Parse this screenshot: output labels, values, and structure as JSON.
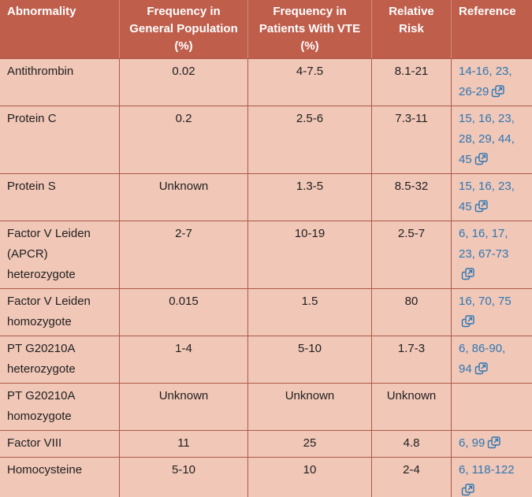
{
  "colors": {
    "header_bg": "#c05e4c",
    "header_text": "#ffffff",
    "header_divider": "#d38a79",
    "row_bg": "#f1c7b7",
    "grid_line": "#ad594a",
    "text": "#1f1f1f",
    "link": "#2d77b4"
  },
  "table": {
    "columns": [
      {
        "id": "abnormality",
        "label": "Abnormality"
      },
      {
        "id": "freq_general",
        "label": "Frequency in General Population (%)"
      },
      {
        "id": "freq_vte",
        "label": "Frequency in Patients With VTE (%)"
      },
      {
        "id": "relative_risk",
        "label": "Relative Risk"
      },
      {
        "id": "reference",
        "label": "Reference"
      }
    ],
    "rows": [
      {
        "abnormality": "Antithrombin",
        "freq_general": "0.02",
        "freq_vte": "4-7.5",
        "relative_risk": "8.1-21",
        "reference": "14-16, 23, 26-29"
      },
      {
        "abnormality": "Protein C",
        "freq_general": "0.2",
        "freq_vte": "2.5-6",
        "relative_risk": "7.3-11",
        "reference": "15, 16, 23, 28, 29, 44, 45"
      },
      {
        "abnormality": "Protein S",
        "freq_general": "Unknown",
        "freq_vte": "1.3-5",
        "relative_risk": "8.5-32",
        "reference": "15, 16, 23, 45"
      },
      {
        "abnormality": "Factor V Leiden (APCR) heterozygote",
        "freq_general": "2-7",
        "freq_vte": "10-19",
        "relative_risk": "2.5-7",
        "reference": "6, 16, 17, 23, 67-73"
      },
      {
        "abnormality": "Factor V Leiden homozygote",
        "freq_general": "0.015",
        "freq_vte": "1.5",
        "relative_risk": "80",
        "reference": "16, 70, 75"
      },
      {
        "abnormality": "PT G20210A heterozygote",
        "freq_general": "1-4",
        "freq_vte": "5-10",
        "relative_risk": "1.7-3",
        "reference": "6, 86-90, 94"
      },
      {
        "abnormality": "PT G20210A homozygote",
        "freq_general": "Unknown",
        "freq_vte": "Unknown",
        "relative_risk": "Unknown",
        "reference": ""
      },
      {
        "abnormality": "Factor VIII",
        "freq_general": "11",
        "freq_vte": "25",
        "relative_risk": "4.8",
        "reference": "6, 99"
      },
      {
        "abnormality": "Homocysteine",
        "freq_general": "5-10",
        "freq_vte": "10",
        "relative_risk": "2-4",
        "reference": "6, 118-122"
      }
    ],
    "external_link_icon": "external-link-icon"
  }
}
